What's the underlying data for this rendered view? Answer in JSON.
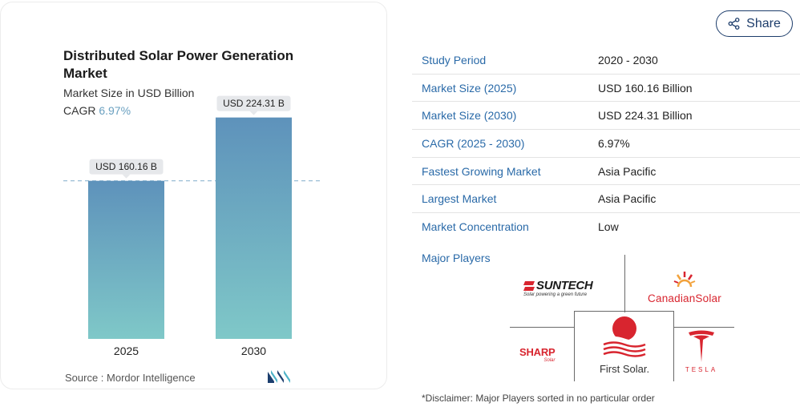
{
  "chart_data": {
    "type": "bar",
    "title": "Distributed Solar Power Generation Market",
    "subtitle": "Market Size in USD Billion",
    "cagr_label": "CAGR",
    "cagr_value": "6.97%",
    "categories": [
      "2025",
      "2030"
    ],
    "values": [
      160.16,
      224.31
    ],
    "data_labels": [
      "USD 160.16 B",
      "USD 224.31 B"
    ],
    "ylim": [
      0,
      250
    ],
    "reference_line_value": 160.16,
    "grid": false,
    "colors": {
      "bar_top": "#5e92bb",
      "bar_bottom": "#7fc8c8",
      "reference_line": "#8fb6d0",
      "label_bg": "#e6e8eb"
    },
    "source": "Source :  Mordor Intelligence"
  },
  "share": {
    "label": "Share",
    "icon": "share-icon"
  },
  "table": {
    "rows": [
      {
        "label": "Study Period",
        "value": "2020 - 2030"
      },
      {
        "label": "Market Size (2025)",
        "value": "USD 160.16 Billion"
      },
      {
        "label": "Market Size (2030)",
        "value": "USD 224.31 Billion"
      },
      {
        "label": "CAGR (2025 - 2030)",
        "value": "6.97%"
      },
      {
        "label": "Fastest Growing Market",
        "value": "Asia Pacific"
      },
      {
        "label": "Largest Market",
        "value": "Asia Pacific"
      },
      {
        "label": "Market Concentration",
        "value": "Low"
      }
    ]
  },
  "players": {
    "label": "Major Players",
    "suntech": {
      "name": "SUNTECH",
      "tagline": "Solar powering a green future"
    },
    "canadian": {
      "name": "CanadianSolar"
    },
    "sharp": {
      "name": "SHARP",
      "tagline": "Solar"
    },
    "firstsolar": {
      "name": "First Solar."
    },
    "tesla": {
      "name": "TESLA"
    }
  },
  "disclaimer": "*Disclaimer: Major Players sorted in no particular order"
}
